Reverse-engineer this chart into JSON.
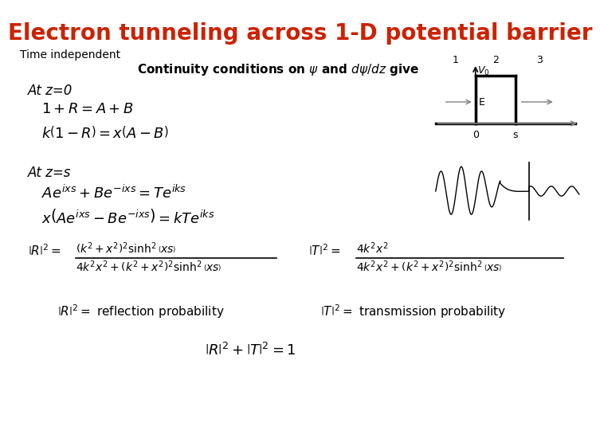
{
  "title": "Electron tunneling across 1-D potential barrier",
  "title_color": "#CC2200",
  "title_fontsize": 20,
  "bg_color": "#FFFFFF",
  "text_color": "#000000",
  "subtitle": "Time independent",
  "continuity_text": "Continuity conditions on $\\psi$ and $d\\psi/dz$ give",
  "at_z0": "At z=0",
  "at_zs": "At z=s",
  "eq1": "$1+R=A+B$",
  "eq2": "$k\\left(1-R\\right)=x\\left(A-B\\right)$",
  "eq3": "$Ae^{ixs}+Be^{-ixs}=Te^{iks}$",
  "eq4": "$x\\left(Ae^{ixs}-Be^{-ixs}\\right)=kTe^{iks}$",
  "eq5_lhs": "$\\left|R\\right|^2=$",
  "eq5_num": "$\\left(k^2+x^2\\right)^2\\sinh^2\\left(xs\\right)$",
  "eq5_den": "$4k^2x^2+\\left(k^2+x^2\\right)^2\\sinh^2\\left(xs\\right)$",
  "eq6_lhs": "$\\left|T\\right|^2=$",
  "eq6_num": "$4k^2x^2$",
  "eq6_den": "$4k^2x^2+\\left(k^2+x^2\\right)^2\\sinh^2\\left(xs\\right)$",
  "eq7": "$\\left|R\\right|^2=$ reflection probability",
  "eq8": "$\\left|T\\right|^2=$ transmission probability",
  "eq9": "$\\left|R\\right|^2+\\left|T\\right|^2=1$",
  "font_family": "sans-serif"
}
